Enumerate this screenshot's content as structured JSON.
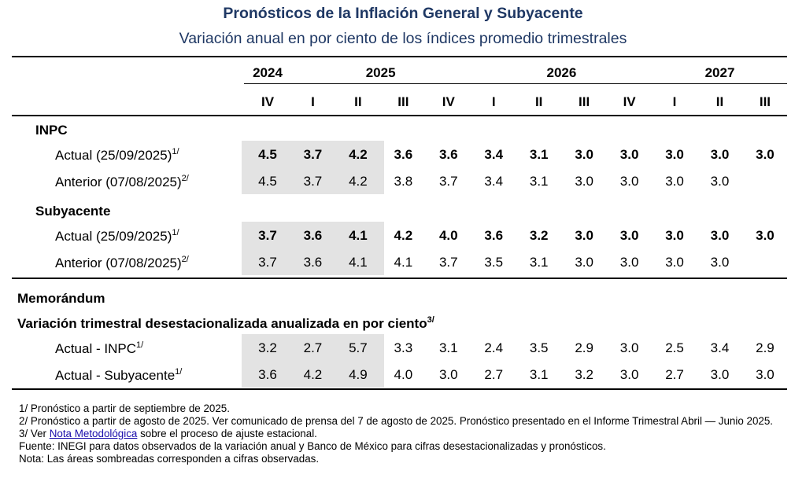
{
  "header": {
    "title": "Pronósticos de la Inflación General y Subyacente",
    "subtitle": "Variación anual en por ciento de los índices promedio trimestrales"
  },
  "table": {
    "years": [
      "2024",
      "2025",
      "2026",
      "2027"
    ],
    "quarters": [
      "IV",
      "I",
      "II",
      "III",
      "IV",
      "I",
      "II",
      "III",
      "IV",
      "I",
      "II",
      "III"
    ],
    "sections": [
      {
        "title": "INPC",
        "rows": [
          {
            "label": "Actual (25/09/2025)",
            "note": "1/",
            "values": [
              "4.5",
              "3.7",
              "4.2",
              "3.6",
              "3.6",
              "3.4",
              "3.1",
              "3.0",
              "3.0",
              "3.0",
              "3.0",
              "3.0"
            ]
          },
          {
            "label": "Anterior (07/08/2025)",
            "note": "2/",
            "values": [
              "4.5",
              "3.7",
              "4.2",
              "3.8",
              "3.7",
              "3.4",
              "3.1",
              "3.0",
              "3.0",
              "3.0",
              "3.0",
              null
            ]
          }
        ]
      },
      {
        "title": "Subyacente",
        "rows": [
          {
            "label": "Actual (25/09/2025)",
            "note": "1/",
            "values": [
              "3.7",
              "3.6",
              "4.1",
              "4.2",
              "4.0",
              "3.6",
              "3.2",
              "3.0",
              "3.0",
              "3.0",
              "3.0",
              "3.0"
            ]
          },
          {
            "label": "Anterior (07/08/2025)",
            "note": "2/",
            "values": [
              "3.7",
              "3.6",
              "4.1",
              "4.1",
              "3.7",
              "3.5",
              "3.1",
              "3.0",
              "3.0",
              "3.0",
              "3.0",
              null
            ]
          }
        ]
      }
    ],
    "memo": {
      "title": "Memorándum",
      "subtitle": "Variación trimestral desestacionalizada anualizada en por ciento",
      "note": "3/",
      "rows": [
        {
          "label": "Actual - INPC",
          "note": "1/",
          "values": [
            "3.2",
            "2.7",
            "5.7",
            "3.3",
            "3.1",
            "2.4",
            "3.5",
            "2.9",
            "3.0",
            "2.5",
            "3.4",
            "2.9"
          ]
        },
        {
          "label": "Actual - Subyacente",
          "note": "1/",
          "values": [
            "3.6",
            "4.2",
            "4.9",
            "4.0",
            "3.0",
            "2.7",
            "3.1",
            "3.2",
            "3.0",
            "2.7",
            "3.0",
            "3.0"
          ]
        }
      ]
    }
  },
  "footnotes": {
    "note1": "1/ Pronóstico a partir de septiembre de 2025.",
    "note2": "2/ Pronóstico a partir de agosto de 2025. Ver comunicado de prensa del 7 de agosto de 2025. Pronóstico presentado en el Informe Trimestral Abril — Junio 2025.",
    "note3": {
      "before": "3/ Ver ",
      "link": "Nota Metodológica",
      "after": " sobre el proceso de ajuste estacional."
    },
    "source": "Fuente: INEGI para datos observados de la variación anual y Banco de México para cifras desestacionalizadas y pronósticos.",
    "nota": "Nota: Las áreas sombreadas corresponden a cifras observadas."
  }
}
